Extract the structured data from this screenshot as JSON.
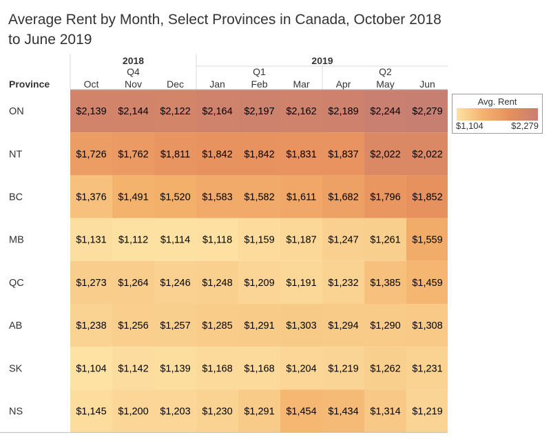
{
  "title": "Average Rent by Month, Select Provinces in Canada, October 2018 to June 2019",
  "chart_data": {
    "type": "heatmap",
    "row_header": "Province",
    "years": [
      {
        "label": "2018",
        "span": 3
      },
      {
        "label": "2019",
        "span": 6
      }
    ],
    "quarters": [
      {
        "label": "Q4",
        "span": 3
      },
      {
        "label": "Q1",
        "span": 3
      },
      {
        "label": "Q2",
        "span": 3
      }
    ],
    "months": [
      "Oct",
      "Nov",
      "Dec",
      "Jan",
      "Feb",
      "Mar",
      "Apr",
      "May",
      "Jun"
    ],
    "rows": [
      "ON",
      "NT",
      "BC",
      "MB",
      "QC",
      "AB",
      "SK",
      "NS"
    ],
    "values": [
      [
        2139,
        2144,
        2122,
        2164,
        2197,
        2162,
        2189,
        2244,
        2279
      ],
      [
        1726,
        1762,
        1811,
        1842,
        1842,
        1831,
        1837,
        2022,
        2022
      ],
      [
        1376,
        1491,
        1520,
        1583,
        1582,
        1611,
        1682,
        1796,
        1852
      ],
      [
        1131,
        1112,
        1114,
        1118,
        1159,
        1187,
        1247,
        1261,
        1559
      ],
      [
        1273,
        1264,
        1246,
        1248,
        1209,
        1191,
        1232,
        1385,
        1459
      ],
      [
        1238,
        1256,
        1257,
        1285,
        1291,
        1303,
        1294,
        1290,
        1308
      ],
      [
        1104,
        1142,
        1139,
        1168,
        1168,
        1204,
        1219,
        1262,
        1231
      ],
      [
        1145,
        1200,
        1203,
        1230,
        1291,
        1454,
        1434,
        1314,
        1219
      ]
    ],
    "value_format": "currency",
    "color_scale": {
      "min": 1104,
      "max": 2279,
      "stops": [
        "#fde2a4",
        "#f4b26c",
        "#e68e5e",
        "#c77f72"
      ]
    },
    "legend": {
      "title": "Avg. Rent",
      "min_label": "$1,104",
      "max_label": "$2,279",
      "placement": "right"
    }
  }
}
